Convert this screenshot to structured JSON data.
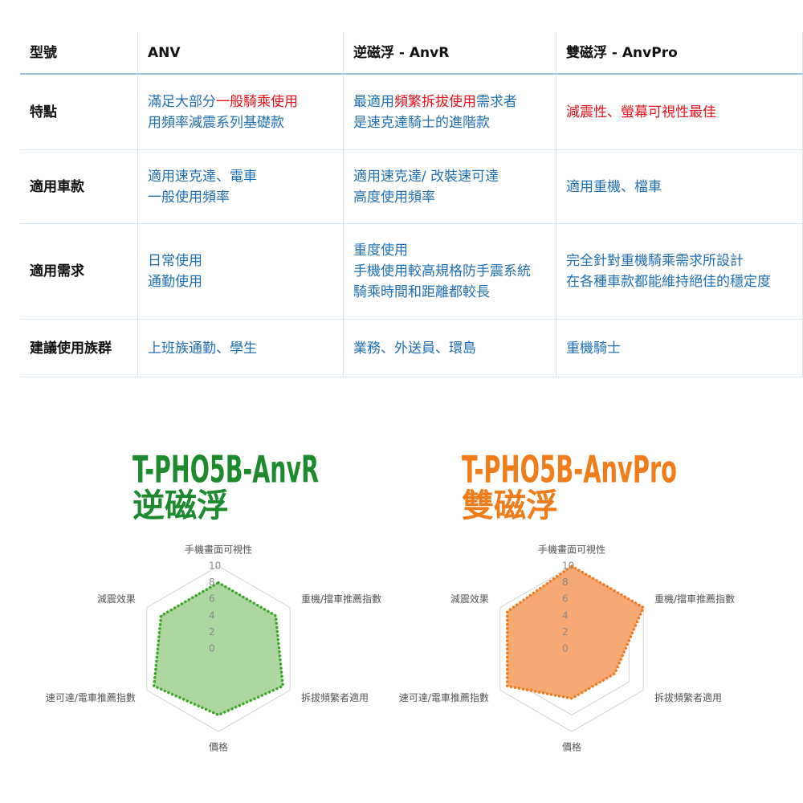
{
  "table": {
    "header": [
      "型號",
      "ANV",
      "逆磁浮 - AnvR",
      "雙磁浮 - AnvPro"
    ],
    "rows": [
      {
        "label": "特點",
        "cells": [
          [
            [
              {
                "text": "滿足大部分"
              },
              {
                "text": "一般騎乘使用",
                "color": "#e8101a"
              }
            ],
            [
              {
                "text": "用頻率減震系列基礎款"
              }
            ]
          ],
          [
            [
              {
                "text": "最適用"
              },
              {
                "text": "頻繁拆拔使用",
                "color": "#e8101a"
              },
              {
                "text": "需求者"
              }
            ],
            [
              {
                "text": "是速克達騎士的進階款"
              }
            ]
          ],
          [
            [
              {
                "text": "減震性、螢幕可視性最佳",
                "color": "#e8101a"
              }
            ]
          ]
        ]
      },
      {
        "label": "適用車款",
        "cells": [
          [
            [
              {
                "text": "適用速克達、電車"
              }
            ],
            [
              {
                "text": "一般使用頻率"
              }
            ]
          ],
          [
            [
              {
                "text": "適用速克達/ 改裝速可達"
              }
            ],
            [
              {
                "text": "高度使用頻率"
              }
            ]
          ],
          [
            [
              {
                "text": "適用重機、檔車"
              }
            ]
          ]
        ]
      },
      {
        "label": "適用需求",
        "cells": [
          [
            [
              {
                "text": "日常使用"
              }
            ],
            [
              {
                "text": "通勤使用"
              }
            ]
          ],
          [
            [
              {
                "text": "重度使用"
              }
            ],
            [
              {
                "text": "手機使用較高規格防手震系統"
              }
            ],
            [
              {
                "text": "騎乘時間和距離都較長"
              }
            ]
          ],
          [
            [
              {
                "text": "完全針對重機騎乘需求所設計"
              }
            ],
            [
              {
                "text": "在各種車款都能維持絕佳的穩定度"
              }
            ]
          ]
        ]
      },
      {
        "label": "建議使用族群",
        "cells": [
          [
            [
              {
                "text": "上班族通勤、學生"
              }
            ]
          ],
          [
            [
              {
                "text": "業務、外送員、環島"
              }
            ]
          ],
          [
            [
              {
                "text": "重機騎士"
              }
            ]
          ]
        ]
      }
    ]
  },
  "chart_data": [
    {
      "type": "radar",
      "title": "T-PHO5B-AnvR",
      "subtitle": "逆磁浮",
      "title_color": "#1e8a2e",
      "categories": [
        "手機畫面可視性",
        "重機/擋車推薦指數",
        "拆拔頻繁者適用",
        "價格",
        "速可達/電車推薦指數",
        "減震效果"
      ],
      "values": [
        8,
        8,
        9,
        8,
        9,
        8
      ],
      "color": "#3aa626",
      "fill": "#a9d59a",
      "ylim": [
        0,
        10
      ],
      "yticks": [
        0,
        2,
        4,
        6,
        8,
        10
      ]
    },
    {
      "type": "radar",
      "title": "T-PHO5B-AnvPro",
      "subtitle": "雙磁浮",
      "title_color": "#f07d1a",
      "categories": [
        "手機畫面可視性",
        "重機/擋車推薦指數",
        "拆拔頻繁者適用",
        "價格",
        "速可達/電車推薦指數",
        "減震效果"
      ],
      "values": [
        10,
        10,
        6,
        6,
        9,
        9
      ],
      "color": "#f07a1f",
      "fill": "#f7a46c",
      "ylim": [
        0,
        10
      ],
      "yticks": [
        0,
        2,
        4,
        6,
        8,
        10
      ]
    }
  ]
}
